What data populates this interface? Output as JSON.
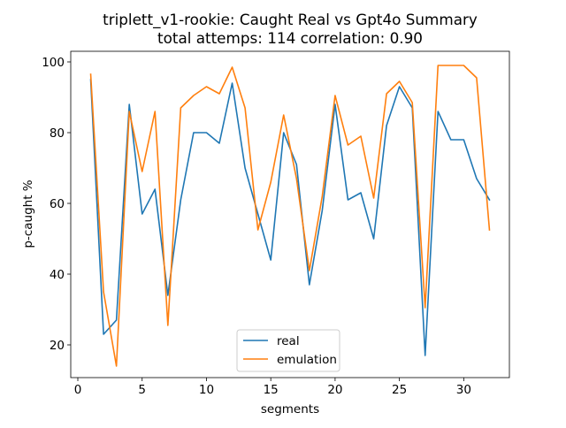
{
  "chart_data": {
    "type": "line",
    "title": "triplett_v1-rookie: Caught Real vs Gpt4o Summary",
    "subtitle": "total attemps: 114 correlation: 0.90",
    "xlabel": "segments",
    "ylabel": "p-caught %",
    "xlim": [
      -0.55,
      33.55
    ],
    "ylim": [
      10.75,
      103.0
    ],
    "xticks": [
      0,
      5,
      10,
      15,
      20,
      25,
      30
    ],
    "yticks": [
      20,
      40,
      60,
      80,
      100
    ],
    "grid": false,
    "legend_position": "lower center",
    "x": [
      1,
      2,
      3,
      4,
      5,
      6,
      7,
      8,
      9,
      10,
      11,
      12,
      13,
      14,
      15,
      16,
      17,
      18,
      19,
      20,
      21,
      22,
      23,
      24,
      25,
      26,
      27,
      28,
      29,
      30,
      31,
      32
    ],
    "series": [
      {
        "name": "real",
        "color": "#1f77b4",
        "values": [
          95,
          23,
          27,
          88,
          57,
          64,
          34,
          61,
          80,
          80,
          77,
          94,
          70,
          57,
          44,
          80,
          71,
          37,
          58,
          88,
          61,
          63,
          50,
          82,
          93,
          87,
          17,
          86,
          78,
          78,
          67,
          61
        ]
      },
      {
        "name": "emulation",
        "color": "#ff7f0e",
        "values": [
          96.5,
          35,
          14,
          86,
          69,
          86,
          25.5,
          87,
          90.5,
          93,
          91,
          98.5,
          87,
          52.5,
          66,
          85,
          67,
          41,
          62,
          90.5,
          76.5,
          79,
          61.5,
          91,
          94.5,
          88.5,
          30.5,
          99,
          99,
          99,
          95.5,
          52.5
        ]
      }
    ]
  }
}
